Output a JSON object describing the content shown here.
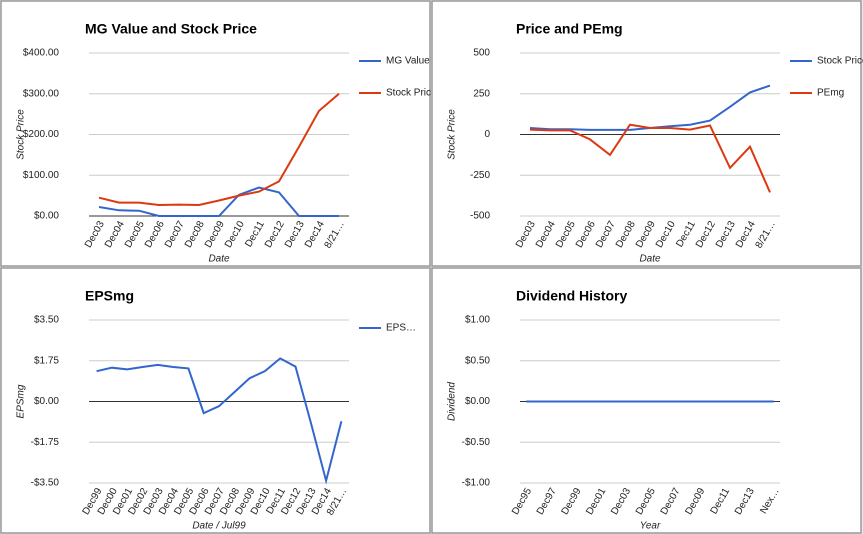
{
  "chart_data": [
    {
      "type": "line",
      "title": "MG Value and Stock Price",
      "y_label": "Stock Price",
      "x_label": "Date",
      "categories": [
        "Dec03",
        "Dec04",
        "Dec05",
        "Dec06",
        "Dec07",
        "Dec08",
        "Dec09",
        "Dec10",
        "Dec11",
        "Dec12",
        "Dec13",
        "Dec14",
        "8/21…"
      ],
      "series": [
        {
          "name": "MG Value",
          "color": "#3366cc",
          "values": [
            22,
            14,
            13,
            0,
            0,
            0,
            0,
            52,
            70,
            58,
            0,
            0,
            0
          ]
        },
        {
          "name": "Stock Price",
          "color": "#dc3912",
          "values": [
            45,
            33,
            33,
            27,
            28,
            27,
            38,
            50,
            60,
            85,
            170,
            258,
            300
          ]
        }
      ],
      "ylim": [
        0,
        400
      ],
      "yticks": [
        {
          "value": 0,
          "label": "$0.00"
        },
        {
          "value": 100,
          "label": "$100.00"
        },
        {
          "value": 200,
          "label": "$200.00"
        },
        {
          "value": 300,
          "label": "$300.00"
        },
        {
          "value": 400,
          "label": "$400.00"
        }
      ],
      "grid": true,
      "legend": "right"
    },
    {
      "type": "line",
      "title": "Price and PEmg",
      "y_label": "Stock Price",
      "x_label": "Date",
      "categories": [
        "Dec03",
        "Dec04",
        "Dec05",
        "Dec06",
        "Dec07",
        "Dec08",
        "Dec09",
        "Dec10",
        "Dec11",
        "Dec12",
        "Dec13",
        "Dec14",
        "8/21…"
      ],
      "series": [
        {
          "name": "Stock Price",
          "color": "#3366cc",
          "values": [
            40,
            32,
            32,
            28,
            28,
            28,
            40,
            50,
            60,
            85,
            170,
            258,
            300
          ]
        },
        {
          "name": "PEmg",
          "color": "#dc3912",
          "values": [
            30,
            25,
            25,
            -30,
            -125,
            60,
            40,
            40,
            30,
            55,
            -205,
            -75,
            -355
          ]
        }
      ],
      "ylim": [
        -500,
        500
      ],
      "yticks": [
        -500,
        -250,
        0,
        250,
        500
      ],
      "grid": true,
      "legend": "right"
    },
    {
      "type": "line",
      "title": "EPSmg",
      "y_label": "EPSmg",
      "x_label": "Date / Jul99",
      "categories": [
        "Dec99",
        "Dec00",
        "Dec01",
        "Dec02",
        "Dec03",
        "Dec04",
        "Dec05",
        "Dec06",
        "Dec07",
        "Dec08",
        "Dec09",
        "Dec10",
        "Dec11",
        "Dec12",
        "Dec13",
        "Dec14",
        "8/21…"
      ],
      "series": [
        {
          "name": "EPS…",
          "color": "#3366cc",
          "values": [
            1.3,
            1.45,
            1.38,
            1.48,
            1.57,
            1.48,
            1.42,
            -0.5,
            -0.2,
            0.4,
            1.0,
            1.3,
            1.85,
            1.5,
            -0.9,
            -3.4,
            -0.85
          ]
        }
      ],
      "ylim": [
        -3.5,
        3.5
      ],
      "yticks": [
        {
          "value": -3.5,
          "label": "-$3.50"
        },
        {
          "value": -1.75,
          "label": "-$1.75"
        },
        {
          "value": 0,
          "label": "$0.00"
        },
        {
          "value": 1.75,
          "label": "$1.75"
        },
        {
          "value": 3.5,
          "label": "$3.50"
        }
      ],
      "grid": true,
      "legend": "right"
    },
    {
      "type": "line",
      "title": "Dividend History",
      "y_label": "Dividend",
      "x_label": "Year",
      "categories": [
        "Dec95",
        null,
        "Dec97",
        null,
        "Dec99",
        null,
        "Dec01",
        null,
        "Dec03",
        null,
        "Dec05",
        null,
        "Dec07",
        null,
        "Dec09",
        null,
        "Dec11",
        null,
        "Dec13",
        null,
        "Nex…"
      ],
      "values": [
        0,
        0,
        0,
        0,
        0,
        0,
        0,
        0,
        0,
        0,
        0,
        0,
        0,
        0,
        0,
        0,
        0,
        0,
        0,
        0,
        0
      ],
      "color": "#3366cc",
      "ylim": [
        -1,
        1
      ],
      "yticks": [
        {
          "value": -1,
          "label": "-$1.00"
        },
        {
          "value": -0.5,
          "label": "-$0.50"
        },
        {
          "value": 0,
          "label": "$0.00"
        },
        {
          "value": 0.5,
          "label": "$0.50"
        },
        {
          "value": 1,
          "label": "$1.00"
        }
      ],
      "grid": true
    }
  ]
}
